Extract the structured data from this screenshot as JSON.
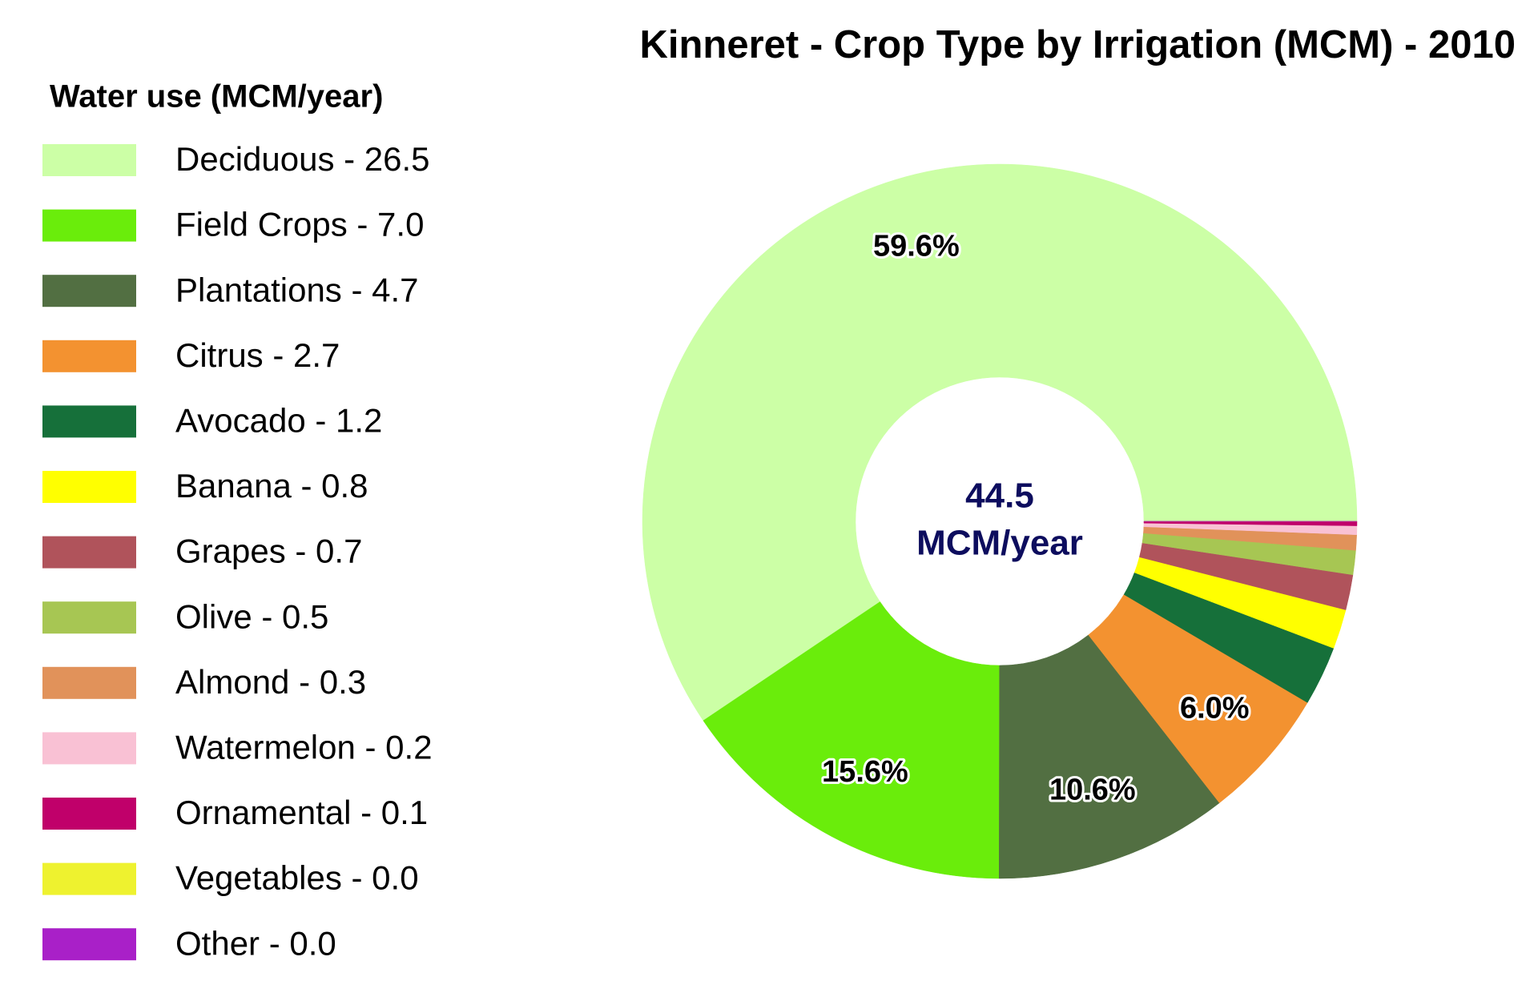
{
  "chart_data": {
    "type": "pie",
    "title": "Kinneret - Crop Type by Irrigation (MCM) - 2010",
    "legend_title": "Water use (MCM/year)",
    "center_label": [
      "44.5",
      "MCM/year"
    ],
    "categories": [
      "Deciduous - 26.5",
      "Field Crops - 7.0",
      "Plantations - 4.7",
      "Citrus - 2.7",
      "Avocado - 1.2",
      "Banana - 0.8",
      "Grapes - 0.7",
      "Olive - 0.5",
      "Almond - 0.3",
      "Watermelon - 0.2",
      "Ornamental - 0.1",
      "Vegetables - 0.0",
      "Other - 0.0"
    ],
    "series": [
      {
        "values": [
          59.6,
          15.6,
          10.6,
          6.0,
          2.7,
          1.8,
          1.6,
          1.1,
          0.7,
          0.4,
          0.2,
          0,
          0
        ],
        "value_labels": [
          "59.6%",
          "15.6%",
          "10.6%",
          "6.0%",
          null,
          null,
          null,
          null,
          null,
          null,
          null,
          null,
          null
        ],
        "colors": [
          "#ccffa6",
          "#6aed0b",
          "#526f42",
          "#f39230",
          "#16703a",
          "#ffff00",
          "#b0535b",
          "#a7c653",
          "#e1925a",
          "#f9c1d4",
          "#c0006a",
          "#eef22f",
          "#a920c8"
        ]
      }
    ],
    "donut": true,
    "legend": "left"
  }
}
